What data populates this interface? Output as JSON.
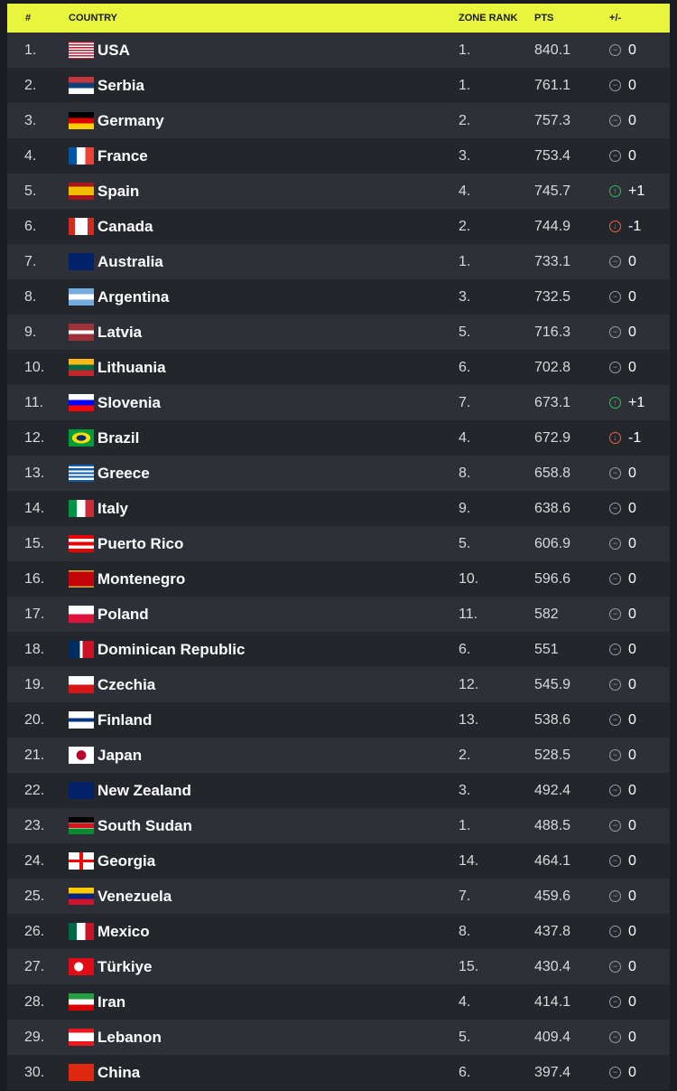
{
  "header": {
    "rank": "#",
    "country": "COUNTRY",
    "zone_rank": "ZONE RANK",
    "pts": "PTS",
    "change": "+/-"
  },
  "colors": {
    "header_bg": "#e9f43c",
    "up": "#2fbf5b",
    "down": "#f0643c",
    "neutral": "#9a9ea4"
  },
  "rows": [
    {
      "rank": "1.",
      "country": "USA",
      "flag": "usa",
      "zone": "1.",
      "pts": "840.1",
      "change": "0",
      "trend": "neutral"
    },
    {
      "rank": "2.",
      "country": "Serbia",
      "flag": "serbia",
      "zone": "1.",
      "pts": "761.1",
      "change": "0",
      "trend": "neutral"
    },
    {
      "rank": "3.",
      "country": "Germany",
      "flag": "germany",
      "zone": "2.",
      "pts": "757.3",
      "change": "0",
      "trend": "neutral"
    },
    {
      "rank": "4.",
      "country": "France",
      "flag": "france",
      "zone": "3.",
      "pts": "753.4",
      "change": "0",
      "trend": "neutral"
    },
    {
      "rank": "5.",
      "country": "Spain",
      "flag": "spain",
      "zone": "4.",
      "pts": "745.7",
      "change": "+1",
      "trend": "up"
    },
    {
      "rank": "6.",
      "country": "Canada",
      "flag": "canada",
      "zone": "2.",
      "pts": "744.9",
      "change": "-1",
      "trend": "down"
    },
    {
      "rank": "7.",
      "country": "Australia",
      "flag": "australia",
      "zone": "1.",
      "pts": "733.1",
      "change": "0",
      "trend": "neutral"
    },
    {
      "rank": "8.",
      "country": "Argentina",
      "flag": "argentina",
      "zone": "3.",
      "pts": "732.5",
      "change": "0",
      "trend": "neutral"
    },
    {
      "rank": "9.",
      "country": "Latvia",
      "flag": "latvia",
      "zone": "5.",
      "pts": "716.3",
      "change": "0",
      "trend": "neutral"
    },
    {
      "rank": "10.",
      "country": "Lithuania",
      "flag": "lithuania",
      "zone": "6.",
      "pts": "702.8",
      "change": "0",
      "trend": "neutral"
    },
    {
      "rank": "11.",
      "country": "Slovenia",
      "flag": "slovenia",
      "zone": "7.",
      "pts": "673.1",
      "change": "+1",
      "trend": "up"
    },
    {
      "rank": "12.",
      "country": "Brazil",
      "flag": "brazil",
      "zone": "4.",
      "pts": "672.9",
      "change": "-1",
      "trend": "down"
    },
    {
      "rank": "13.",
      "country": "Greece",
      "flag": "greece",
      "zone": "8.",
      "pts": "658.8",
      "change": "0",
      "trend": "neutral"
    },
    {
      "rank": "14.",
      "country": "Italy",
      "flag": "italy",
      "zone": "9.",
      "pts": "638.6",
      "change": "0",
      "trend": "neutral"
    },
    {
      "rank": "15.",
      "country": "Puerto Rico",
      "flag": "puertorico",
      "zone": "5.",
      "pts": "606.9",
      "change": "0",
      "trend": "neutral"
    },
    {
      "rank": "16.",
      "country": "Montenegro",
      "flag": "montenegro",
      "zone": "10.",
      "pts": "596.6",
      "change": "0",
      "trend": "neutral"
    },
    {
      "rank": "17.",
      "country": "Poland",
      "flag": "poland",
      "zone": "11.",
      "pts": "582",
      "change": "0",
      "trend": "neutral"
    },
    {
      "rank": "18.",
      "country": "Dominican Republic",
      "flag": "dominican",
      "zone": "6.",
      "pts": "551",
      "change": "0",
      "trend": "neutral"
    },
    {
      "rank": "19.",
      "country": "Czechia",
      "flag": "czechia",
      "zone": "12.",
      "pts": "545.9",
      "change": "0",
      "trend": "neutral"
    },
    {
      "rank": "20.",
      "country": "Finland",
      "flag": "finland",
      "zone": "13.",
      "pts": "538.6",
      "change": "0",
      "trend": "neutral"
    },
    {
      "rank": "21.",
      "country": "Japan",
      "flag": "japan",
      "zone": "2.",
      "pts": "528.5",
      "change": "0",
      "trend": "neutral"
    },
    {
      "rank": "22.",
      "country": "New Zealand",
      "flag": "newzealand",
      "zone": "3.",
      "pts": "492.4",
      "change": "0",
      "trend": "neutral"
    },
    {
      "rank": "23.",
      "country": "South Sudan",
      "flag": "southsudan",
      "zone": "1.",
      "pts": "488.5",
      "change": "0",
      "trend": "neutral"
    },
    {
      "rank": "24.",
      "country": "Georgia",
      "flag": "georgia",
      "zone": "14.",
      "pts": "464.1",
      "change": "0",
      "trend": "neutral"
    },
    {
      "rank": "25.",
      "country": "Venezuela",
      "flag": "venezuela",
      "zone": "7.",
      "pts": "459.6",
      "change": "0",
      "trend": "neutral"
    },
    {
      "rank": "26.",
      "country": "Mexico",
      "flag": "mexico",
      "zone": "8.",
      "pts": "437.8",
      "change": "0",
      "trend": "neutral"
    },
    {
      "rank": "27.",
      "country": "Türkiye",
      "flag": "turkiye",
      "zone": "15.",
      "pts": "430.4",
      "change": "0",
      "trend": "neutral"
    },
    {
      "rank": "28.",
      "country": "Iran",
      "flag": "iran",
      "zone": "4.",
      "pts": "414.1",
      "change": "0",
      "trend": "neutral"
    },
    {
      "rank": "29.",
      "country": "Lebanon",
      "flag": "lebanon",
      "zone": "5.",
      "pts": "409.4",
      "change": "0",
      "trend": "neutral"
    },
    {
      "rank": "30.",
      "country": "China",
      "flag": "china",
      "zone": "6.",
      "pts": "397.4",
      "change": "0",
      "trend": "neutral"
    }
  ]
}
